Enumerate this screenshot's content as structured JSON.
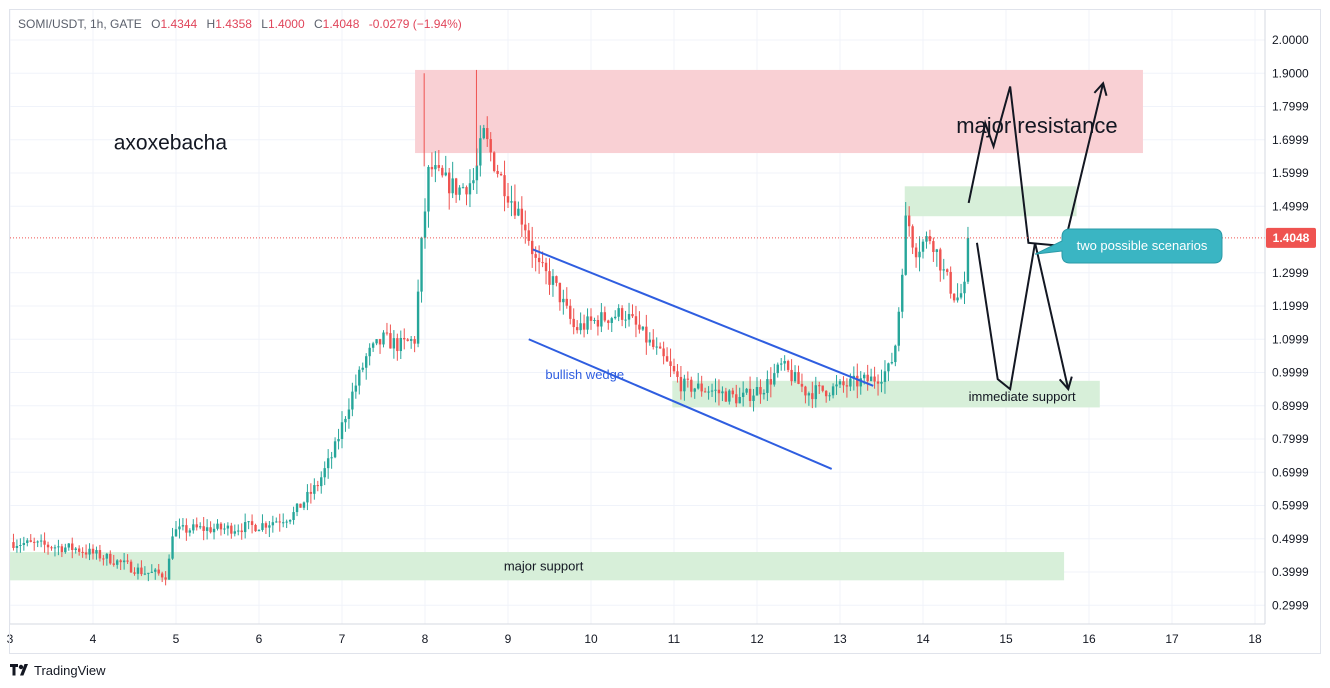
{
  "header": {
    "symbol": "SOMI/USDT, 1h, GATE",
    "open_label": "O",
    "open": "1.4344",
    "high_label": "H",
    "high": "1.4358",
    "low_label": "L",
    "low": "1.4000",
    "close_label": "C",
    "close": "1.4048",
    "change": "-0.0279 (−1.94%)"
  },
  "footer": {
    "brand": "TradingView",
    "logo_icon": "tradingview-logo-icon"
  },
  "colors": {
    "up": "#26a69a",
    "down": "#ef5350",
    "resistance_zone": "#f9d0d4",
    "support_zone": "#d7efd9",
    "wedge_lines": "#2f5ee0",
    "callout": "#3ab5c3",
    "price_label": "#ef5350"
  },
  "chart_data": {
    "type": "candlestick",
    "symbol": "SOMI/USDT",
    "interval": "1h",
    "exchange": "GATE",
    "last_price": "1.4048",
    "y_axis": {
      "range": [
        0.22,
        2.04
      ],
      "ticks": [
        "2.0000",
        "1.9000",
        "1.7999",
        "1.6999",
        "1.5999",
        "1.4999",
        "1.2999",
        "1.1999",
        "1.0999",
        "0.9999",
        "0.8999",
        "0.7999",
        "0.6999",
        "0.5999",
        "0.4999",
        "0.3999",
        "0.2999"
      ]
    },
    "x_axis": {
      "range": [
        3,
        18.1
      ],
      "ticks": [
        "3",
        "4",
        "5",
        "6",
        "7",
        "8",
        "9",
        "10",
        "11",
        "12",
        "13",
        "14",
        "15",
        "16",
        "17",
        "18"
      ]
    },
    "price_path": [
      [
        3.0,
        0.49
      ],
      [
        3.4,
        0.48
      ],
      [
        3.8,
        0.47
      ],
      [
        4.2,
        0.44
      ],
      [
        4.6,
        0.4
      ],
      [
        4.9,
        0.39
      ],
      [
        4.95,
        0.52
      ],
      [
        5.2,
        0.53
      ],
      [
        5.6,
        0.53
      ],
      [
        6.0,
        0.54
      ],
      [
        6.4,
        0.57
      ],
      [
        6.7,
        0.66
      ],
      [
        6.9,
        0.76
      ],
      [
        7.1,
        0.92
      ],
      [
        7.3,
        1.05
      ],
      [
        7.5,
        1.1
      ],
      [
        7.7,
        1.08
      ],
      [
        7.88,
        1.1
      ],
      [
        7.95,
        1.36
      ],
      [
        8.05,
        1.62
      ],
      [
        8.2,
        1.58
      ],
      [
        8.4,
        1.55
      ],
      [
        8.6,
        1.58
      ],
      [
        8.7,
        1.72
      ],
      [
        8.85,
        1.62
      ],
      [
        9.0,
        1.54
      ],
      [
        9.2,
        1.45
      ],
      [
        9.35,
        1.32
      ],
      [
        9.55,
        1.27
      ],
      [
        9.8,
        1.13
      ],
      [
        10.1,
        1.16
      ],
      [
        10.4,
        1.18
      ],
      [
        10.6,
        1.12
      ],
      [
        10.9,
        1.03
      ],
      [
        11.1,
        0.96
      ],
      [
        11.4,
        0.95
      ],
      [
        11.8,
        0.92
      ],
      [
        12.1,
        0.96
      ],
      [
        12.3,
        1.02
      ],
      [
        12.6,
        0.94
      ],
      [
        12.9,
        0.95
      ],
      [
        13.2,
        0.97
      ],
      [
        13.4,
        0.98
      ],
      [
        13.6,
        1.01
      ],
      [
        13.68,
        1.1
      ],
      [
        13.8,
        1.48
      ],
      [
        13.9,
        1.37
      ],
      [
        14.1,
        1.41
      ],
      [
        14.25,
        1.3
      ],
      [
        14.4,
        1.22
      ],
      [
        14.5,
        1.25
      ],
      [
        14.55,
        1.4048
      ]
    ],
    "zones": [
      {
        "name": "resistance",
        "label": "major resistance",
        "x": [
          7.88,
          16.65
        ],
        "y": [
          1.66,
          1.91
        ]
      },
      {
        "name": "upper-support",
        "label": "",
        "x": [
          13.78,
          15.85
        ],
        "y": [
          1.47,
          1.56
        ]
      },
      {
        "name": "immediate-support",
        "label": "immediate support",
        "x": [
          10.98,
          16.13
        ],
        "y": [
          0.895,
          0.975
        ]
      },
      {
        "name": "major-support",
        "label": "major support",
        "x": [
          3.0,
          15.7
        ],
        "y": [
          0.375,
          0.46
        ]
      }
    ],
    "trendlines": [
      {
        "name": "wedge-upper",
        "x": [
          9.3,
          13.4
        ],
        "y": [
          1.37,
          0.96
        ]
      },
      {
        "name": "wedge-lower",
        "x": [
          9.25,
          12.9
        ],
        "y": [
          1.1,
          0.71
        ]
      }
    ],
    "scenario_paths": [
      {
        "name": "scenario-up",
        "points": [
          [
            14.55,
            1.51
          ],
          [
            14.75,
            1.75
          ],
          [
            14.85,
            1.68
          ],
          [
            15.05,
            1.86
          ],
          [
            15.27,
            1.39
          ],
          [
            15.7,
            1.38
          ],
          [
            16.17,
            1.87
          ]
        ],
        "arrow": true
      },
      {
        "name": "scenario-down",
        "points": [
          [
            14.65,
            1.39
          ],
          [
            14.9,
            0.98
          ],
          [
            15.05,
            0.95
          ],
          [
            15.35,
            1.39
          ],
          [
            15.75,
            0.95
          ]
        ],
        "arrow": true
      }
    ],
    "annotations": [
      {
        "name": "author-label",
        "text": "axoxebacha",
        "x": 4.25,
        "y": 1.67
      },
      {
        "name": "wedge-label",
        "text": "bullish wedge",
        "x": 9.45,
        "y": 0.98
      },
      {
        "name": "resistance-label",
        "text": "major resistance",
        "x": 14.4,
        "y": 1.72
      },
      {
        "name": "immediate-support-label",
        "text": "immediate support",
        "x": 14.55,
        "y": 0.915
      },
      {
        "name": "major-support-label",
        "text": "major support",
        "x": 8.95,
        "y": 0.405
      },
      {
        "name": "scenarios-callout",
        "text": "two possible scenarios",
        "x": 15.35,
        "y": 1.38
      }
    ]
  }
}
